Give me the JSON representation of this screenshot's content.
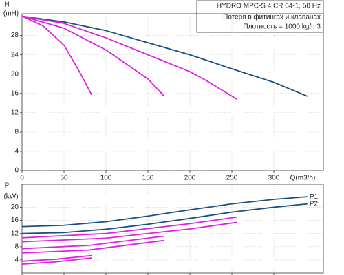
{
  "chart_data": [
    {
      "type": "line",
      "title": "HYDRO MPC-S 4 CR 64-1, 50 Hz",
      "subtitle": [
        "Потеря в фитингах и клапанах",
        "Плотность = 1000 kg/m3"
      ],
      "y_label": "H",
      "y_unit": "(mH)",
      "x_label": "Q(m3/h)",
      "xlim": [
        0,
        359
      ],
      "ylim": [
        0,
        32.5
      ],
      "xticks": [
        0,
        50,
        100,
        150,
        200,
        250,
        300
      ],
      "yticks": [
        0,
        4,
        8,
        12,
        16,
        20,
        24,
        28
      ],
      "grid": true,
      "series": [
        {
          "color": "#1b4f7e",
          "x": [
            0,
            50,
            100,
            150,
            200,
            250,
            300,
            340
          ],
          "values": [
            32,
            30.8,
            29,
            26.5,
            24,
            21.1,
            18.3,
            15.4
          ]
        },
        {
          "color": "#e020e0",
          "x": [
            0,
            50,
            100,
            150,
            200,
            220,
            256
          ],
          "values": [
            32,
            30.5,
            27.5,
            24,
            20.5,
            18.6,
            14.8
          ]
        },
        {
          "color": "#e020e0",
          "x": [
            0,
            50,
            100,
            150,
            169
          ],
          "values": [
            32,
            29.5,
            25,
            19,
            15.5
          ]
        },
        {
          "color": "#e020e0",
          "x": [
            0,
            25,
            50,
            70,
            83
          ],
          "values": [
            32,
            30,
            26,
            20,
            15.7
          ]
        }
      ]
    },
    {
      "type": "line",
      "y_label": "P",
      "y_unit": "(kW)",
      "xlim": [
        0,
        359
      ],
      "ylim": [
        0,
        27
      ],
      "xticks": [
        0,
        50,
        100,
        150,
        200,
        250,
        300
      ],
      "yticks": [
        4,
        8,
        12,
        16,
        20
      ],
      "grid": true,
      "series": [
        {
          "name": "P1",
          "color": "#1b4f7e",
          "x": [
            0,
            50,
            100,
            150,
            200,
            250,
            300,
            340
          ],
          "values": [
            14.1,
            14.5,
            15.6,
            17.3,
            19.2,
            21,
            22.4,
            23.2
          ]
        },
        {
          "name": "P2",
          "color": "#1b4f7e",
          "x": [
            0,
            50,
            100,
            150,
            200,
            250,
            300,
            340
          ],
          "values": [
            12,
            12.3,
            13.3,
            14.8,
            16.6,
            18.5,
            20,
            21
          ]
        },
        {
          "color": "#e020e0",
          "x": [
            0,
            100,
            200,
            256
          ],
          "values": [
            10.7,
            12,
            15,
            17
          ]
        },
        {
          "color": "#e020e0",
          "x": [
            0,
            100,
            200,
            256
          ],
          "values": [
            9.5,
            10.6,
            13.4,
            15.4
          ]
        },
        {
          "color": "#e020e0",
          "x": [
            0,
            80,
            169
          ],
          "values": [
            7.4,
            8.4,
            11.2
          ]
        },
        {
          "color": "#e020e0",
          "x": [
            0,
            80,
            169
          ],
          "values": [
            6.1,
            7,
            9.9
          ]
        },
        {
          "color": "#e020e0",
          "x": [
            0,
            40,
            83
          ],
          "values": [
            3.6,
            4.2,
            5.3
          ]
        },
        {
          "color": "#e020e0",
          "x": [
            0,
            40,
            83
          ],
          "values": [
            2.7,
            3.4,
            4.6
          ]
        }
      ]
    }
  ]
}
